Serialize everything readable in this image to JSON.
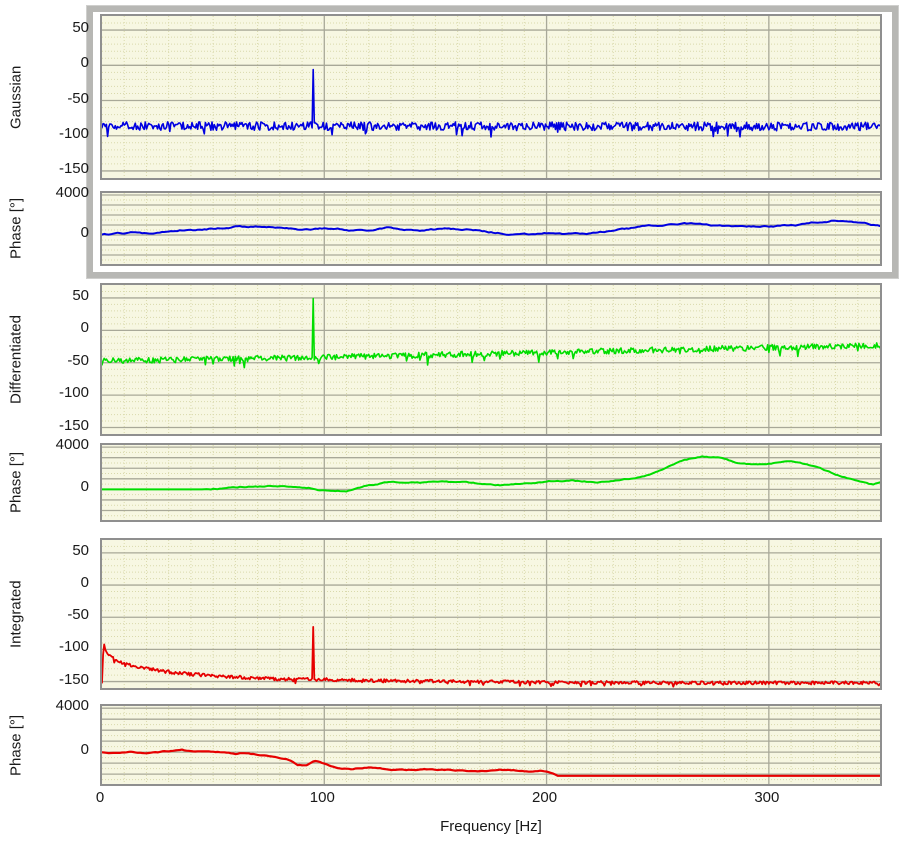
{
  "figure": {
    "description": "Six stacked frequency-spectrum plots: magnitude and phase pairs for Gaussian, Differentiated and Integrated signals",
    "background": "#ffffff"
  },
  "styles": {
    "plot_background": "#f7f7e2",
    "minor_grid": "#d9d9ab",
    "major_grid": "#a8a898",
    "plot_border": "#8f8f8f",
    "frame_border": "#b7b7b4",
    "blue": "#0000e0",
    "green": "#00dd00",
    "red": "#e60000"
  },
  "chart_data": {
    "type": "line",
    "xaxis": {
      "label": "Frequency [Hz]",
      "min": 0,
      "max": 350,
      "ticks": [
        0,
        100,
        200,
        300
      ],
      "major_step": 100,
      "minor_step": 10
    },
    "panels": [
      {
        "name": "gaussian-magnitude",
        "ylabel": "Gaussian",
        "color": "#0000e0",
        "ylim": [
          -160,
          70
        ],
        "yticks": [
          50,
          0,
          -50,
          -100,
          -150
        ],
        "ymajor_step": 50,
        "yminor_step": 10,
        "series": {
          "style": "noise",
          "seed": 1101,
          "step": 0.5,
          "width": 1.6,
          "baseline": [
            [
              0,
              -86
            ],
            [
              350,
              -87
            ]
          ],
          "noise": 6,
          "dip_chance": 0.05,
          "dip": 17,
          "spike": {
            "x": 95,
            "y": -6
          }
        }
      },
      {
        "name": "gaussian-phase",
        "ylabel": "Phase [°]",
        "color": "#0000e0",
        "ylim": [
          -2900,
          4200
        ],
        "yticks": [
          4000,
          0
        ],
        "ymajor_step": 1000,
        "yminor_step": 500,
        "series": {
          "style": "walk",
          "seed": 2202,
          "step": 1,
          "width": 2,
          "wander": 130,
          "damp": 0.88,
          "baseline": [
            [
              0,
              0
            ],
            [
              8,
              150
            ],
            [
              15,
              250
            ],
            [
              22,
              180
            ],
            [
              30,
              480
            ],
            [
              38,
              620
            ],
            [
              45,
              560
            ],
            [
              52,
              700
            ],
            [
              60,
              880
            ],
            [
              68,
              820
            ],
            [
              75,
              880
            ],
            [
              82,
              700
            ],
            [
              90,
              520
            ],
            [
              97,
              640
            ],
            [
              105,
              650
            ],
            [
              112,
              520
            ],
            [
              120,
              420
            ],
            [
              128,
              620
            ],
            [
              135,
              550
            ],
            [
              142,
              480
            ],
            [
              150,
              520
            ],
            [
              158,
              560
            ],
            [
              165,
              480
            ],
            [
              172,
              380
            ],
            [
              180,
              200
            ],
            [
              188,
              120
            ],
            [
              195,
              80
            ],
            [
              202,
              180
            ],
            [
              208,
              80
            ],
            [
              215,
              20
            ],
            [
              222,
              120
            ],
            [
              230,
              380
            ],
            [
              238,
              650
            ],
            [
              245,
              800
            ],
            [
              252,
              980
            ],
            [
              260,
              1080
            ],
            [
              268,
              1150
            ],
            [
              275,
              1000
            ],
            [
              282,
              880
            ],
            [
              290,
              820
            ],
            [
              298,
              900
            ],
            [
              305,
              980
            ],
            [
              312,
              1050
            ],
            [
              320,
              1300
            ],
            [
              328,
              1520
            ],
            [
              334,
              1450
            ],
            [
              340,
              1150
            ],
            [
              346,
              950
            ],
            [
              350,
              900
            ]
          ]
        }
      },
      {
        "name": "differentiated-magnitude",
        "ylabel": "Differentiated",
        "color": "#00dd00",
        "ylim": [
          -160,
          70
        ],
        "yticks": [
          50,
          0,
          -50,
          -100,
          -150
        ],
        "ymajor_step": 50,
        "yminor_step": 10,
        "series": {
          "style": "noise",
          "seed": 3303,
          "step": 0.5,
          "width": 1.6,
          "baseline": [
            [
              0,
              -47
            ],
            [
              40,
              -45
            ],
            [
              80,
              -43
            ],
            [
              120,
              -40
            ],
            [
              160,
              -37
            ],
            [
              200,
              -34
            ],
            [
              240,
              -31
            ],
            [
              280,
              -28
            ],
            [
              320,
              -25
            ],
            [
              350,
              -23
            ]
          ],
          "noise": 4.5,
          "dip_chance": 0.05,
          "dip": 14,
          "spike": {
            "x": 95,
            "y": 49
          }
        }
      },
      {
        "name": "differentiated-phase",
        "ylabel": "Phase [°]",
        "color": "#00dd00",
        "ylim": [
          -2900,
          4200
        ],
        "yticks": [
          4000,
          0
        ],
        "ymajor_step": 1000,
        "yminor_step": 500,
        "series": {
          "style": "walk",
          "seed": 4404,
          "step": 1,
          "width": 2,
          "wander": 100,
          "damp": 0.88,
          "quiet_until": 45,
          "baseline": [
            [
              0,
              0
            ],
            [
              45,
              0
            ],
            [
              55,
              150
            ],
            [
              65,
              280
            ],
            [
              75,
              300
            ],
            [
              85,
              320
            ],
            [
              95,
              150
            ],
            [
              103,
              -150
            ],
            [
              110,
              -100
            ],
            [
              118,
              250
            ],
            [
              127,
              600
            ],
            [
              135,
              700
            ],
            [
              143,
              620
            ],
            [
              152,
              700
            ],
            [
              162,
              620
            ],
            [
              172,
              480
            ],
            [
              182,
              420
            ],
            [
              192,
              600
            ],
            [
              202,
              780
            ],
            [
              212,
              800
            ],
            [
              222,
              680
            ],
            [
              232,
              850
            ],
            [
              242,
              1150
            ],
            [
              252,
              1850
            ],
            [
              262,
              2700
            ],
            [
              270,
              3100
            ],
            [
              278,
              3000
            ],
            [
              286,
              2550
            ],
            [
              295,
              2300
            ],
            [
              304,
              2500
            ],
            [
              311,
              2600
            ],
            [
              318,
              2300
            ],
            [
              327,
              1600
            ],
            [
              336,
              1000
            ],
            [
              343,
              600
            ],
            [
              347,
              400
            ],
            [
              350,
              650
            ]
          ]
        }
      },
      {
        "name": "integrated-magnitude",
        "ylabel": "Integrated",
        "color": "#e60000",
        "ylim": [
          -160,
          70
        ],
        "yticks": [
          50,
          0,
          -50,
          -100,
          -150
        ],
        "ymajor_step": 50,
        "yminor_step": 10,
        "series": {
          "style": "noise",
          "seed": 5505,
          "step": 0.5,
          "width": 1.8,
          "baseline": [
            [
              0,
              -150
            ],
            [
              0.7,
              -92
            ],
            [
              2,
              -103
            ],
            [
              4,
              -112
            ],
            [
              7,
              -118
            ],
            [
              10,
              -122
            ],
            [
              14,
              -126
            ],
            [
              18,
              -129
            ],
            [
              24,
              -132
            ],
            [
              30,
              -135
            ],
            [
              38,
              -138
            ],
            [
              46,
              -140
            ],
            [
              55,
              -142
            ],
            [
              65,
              -144
            ],
            [
              80,
              -146
            ],
            [
              100,
              -147
            ],
            [
              130,
              -149
            ],
            [
              160,
              -150
            ],
            [
              200,
              -151
            ],
            [
              250,
              -152
            ],
            [
              300,
              -152
            ],
            [
              350,
              -152
            ]
          ],
          "noise": 2.5,
          "dip_chance": 0.05,
          "dip": 6,
          "spike": {
            "x": 95,
            "y": -65
          }
        }
      },
      {
        "name": "integrated-phase",
        "ylabel": "Phase [°]",
        "color": "#e60000",
        "ylim": [
          -2900,
          4200
        ],
        "yticks": [
          4000,
          0
        ],
        "ymajor_step": 1000,
        "yminor_step": 500,
        "series": {
          "style": "walk",
          "seed": 6606,
          "step": 1,
          "width": 2.2,
          "wander": 90,
          "damp": 0.86,
          "flat_after": 205,
          "flat_value": -2150,
          "baseline": [
            [
              0,
              -30
            ],
            [
              6,
              -80
            ],
            [
              12,
              -10
            ],
            [
              18,
              -120
            ],
            [
              24,
              -60
            ],
            [
              30,
              60
            ],
            [
              36,
              120
            ],
            [
              42,
              30
            ],
            [
              48,
              -60
            ],
            [
              54,
              -20
            ],
            [
              60,
              -160
            ],
            [
              66,
              -80
            ],
            [
              72,
              -280
            ],
            [
              78,
              -420
            ],
            [
              84,
              -700
            ],
            [
              88,
              -1150
            ],
            [
              92,
              -1250
            ],
            [
              96,
              -850
            ],
            [
              100,
              -1100
            ],
            [
              104,
              -1300
            ],
            [
              108,
              -1500
            ],
            [
              113,
              -1600
            ],
            [
              118,
              -1450
            ],
            [
              124,
              -1500
            ],
            [
              130,
              -1600
            ],
            [
              137,
              -1650
            ],
            [
              145,
              -1550
            ],
            [
              153,
              -1600
            ],
            [
              161,
              -1600
            ],
            [
              170,
              -1700
            ],
            [
              180,
              -1650
            ],
            [
              190,
              -1700
            ],
            [
              200,
              -1700
            ],
            [
              203,
              -2000
            ],
            [
              205,
              -2150
            ]
          ]
        }
      }
    ]
  }
}
